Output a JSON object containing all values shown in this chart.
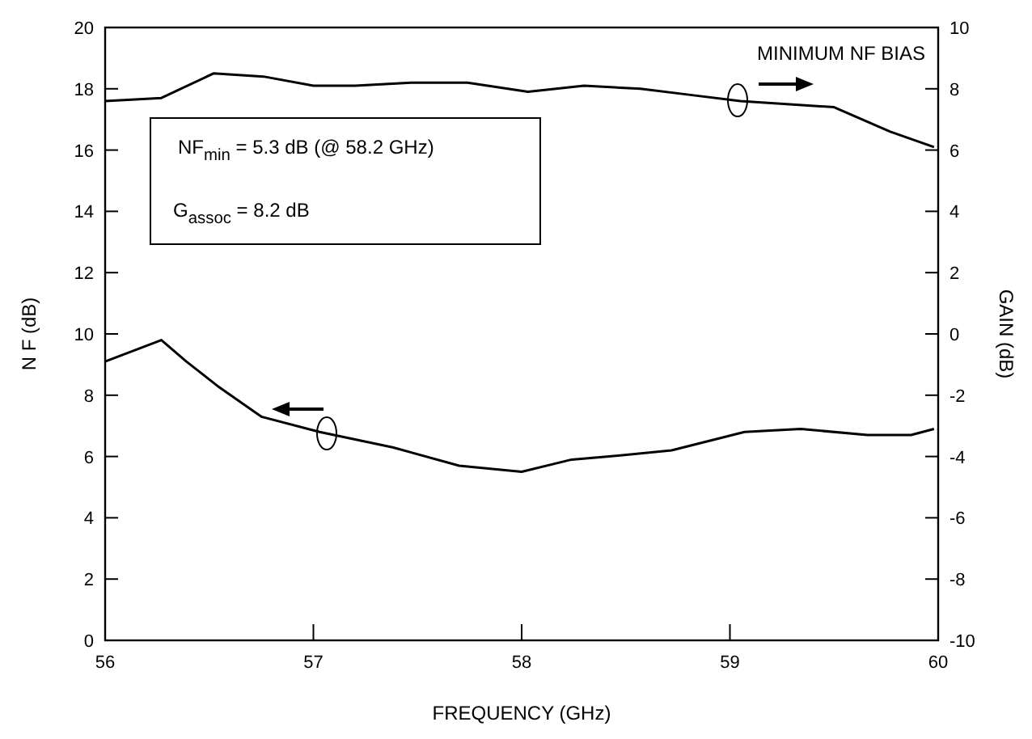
{
  "chart_data": {
    "type": "line",
    "xlabel": "FREQUENCY (GHz)",
    "ylabel": "N F  (dB)",
    "y2label": "GAIN  (dB)",
    "xlim": [
      56,
      60
    ],
    "xticks": [
      56,
      57,
      58,
      59,
      60
    ],
    "ylim": [
      0,
      20
    ],
    "yticks": [
      0,
      2,
      4,
      6,
      8,
      10,
      12,
      14,
      16,
      18,
      20
    ],
    "y2lim": [
      -10,
      10
    ],
    "y2ticks": [
      -10,
      -8,
      -6,
      -4,
      -2,
      0,
      2,
      4,
      6,
      8,
      10
    ],
    "grid": false,
    "marker": "none",
    "line_style": "solid",
    "series": [
      {
        "color": "#000000",
        "x": [
          56.0,
          56.27,
          56.39,
          56.54,
          56.75,
          57.03,
          57.38,
          57.7,
          58.0,
          58.24,
          58.42,
          58.72,
          59.07,
          59.34,
          59.66,
          59.87,
          59.98
        ],
        "values": [
          9.1,
          9.8,
          9.1,
          8.3,
          7.3,
          6.8,
          6.3,
          5.7,
          5.5,
          5.9,
          6.0,
          6.2,
          6.8,
          6.9,
          6.7,
          6.7,
          6.9
        ]
      },
      {
        "color": "#000000",
        "axis": "y2",
        "x": [
          56.0,
          56.27,
          56.52,
          56.76,
          57.0,
          57.2,
          57.47,
          57.74,
          58.03,
          58.3,
          58.57,
          58.81,
          59.05,
          59.5,
          59.77,
          59.98
        ],
        "values": [
          7.6,
          7.7,
          8.5,
          8.4,
          8.1,
          8.1,
          8.2,
          8.2,
          7.9,
          8.1,
          8.0,
          7.8,
          7.6,
          7.4,
          6.6,
          6.1
        ]
      }
    ],
    "annotations": [
      "MINIMUM NF BIAS",
      "NF$_{min}$ = 5.3 dB (@ 58.2 GHz)",
      "G$_{assoc}$ = 8.2 dB"
    ]
  }
}
